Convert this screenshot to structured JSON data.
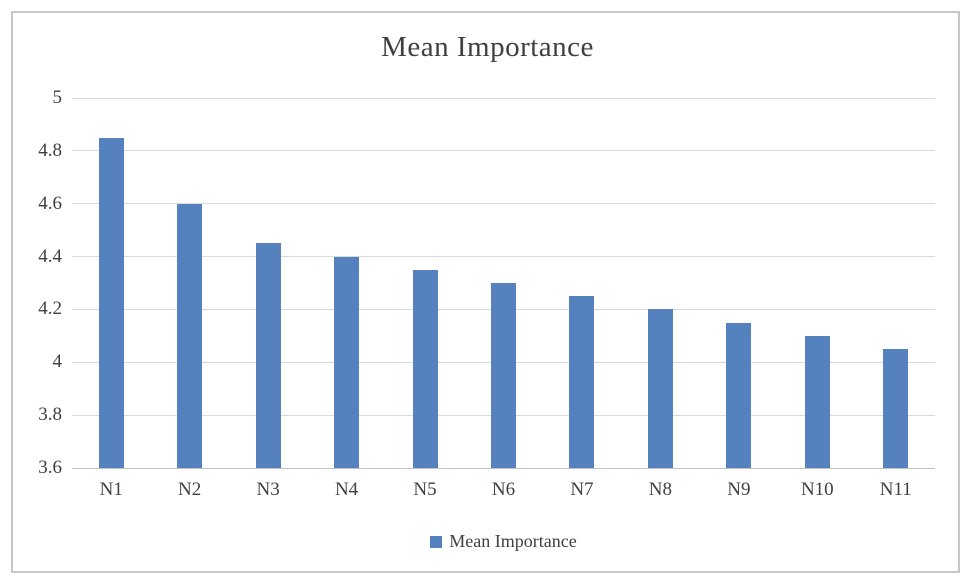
{
  "chart_data": {
    "type": "bar",
    "title": "Mean Importance",
    "categories": [
      "N1",
      "N2",
      "N3",
      "N4",
      "N5",
      "N6",
      "N7",
      "N8",
      "N9",
      "N10",
      "N11"
    ],
    "series": [
      {
        "name": "Mean Importance",
        "values": [
          4.85,
          4.6,
          4.45,
          4.4,
          4.35,
          4.3,
          4.25,
          4.2,
          4.15,
          4.1,
          4.05
        ]
      }
    ],
    "xlabel": "",
    "ylabel": "",
    "ylim": [
      3.6,
      5.0
    ],
    "ytick_step": 0.2,
    "yticks": [
      "3.6",
      "3.8",
      "4",
      "4.2",
      "4.4",
      "4.6",
      "4.8",
      "5"
    ],
    "grid": true,
    "legend_position": "bottom",
    "legend_label": "Mean Importance",
    "colors": {
      "bar": "#5581be",
      "gridline": "#d9d9d9",
      "baseline": "#c3c3c3",
      "title_text": "#3f3f3f",
      "axis_text": "#404040",
      "frame_border": "#c6c6c6",
      "background": "#ffffff"
    }
  }
}
